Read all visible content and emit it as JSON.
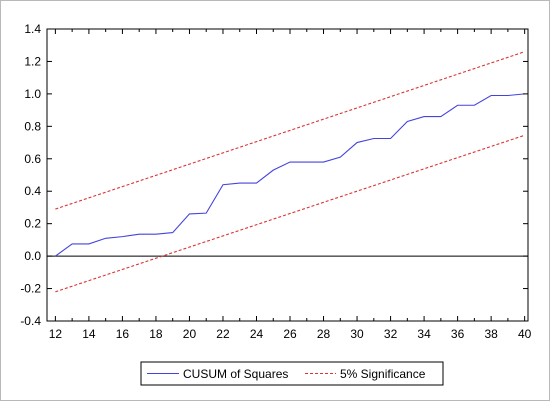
{
  "chart_data": {
    "type": "line",
    "title": "",
    "xlabel": "",
    "ylabel": "",
    "xlim": [
      11.5,
      40.2
    ],
    "ylim": [
      -0.4,
      1.4
    ],
    "x_ticks": [
      12,
      14,
      16,
      18,
      20,
      22,
      24,
      26,
      28,
      30,
      32,
      34,
      36,
      38,
      40
    ],
    "y_ticks": [
      -0.4,
      -0.2,
      0.0,
      0.2,
      0.4,
      0.6,
      0.8,
      1.0,
      1.2,
      1.4
    ],
    "y_tick_labels": [
      "-0.4",
      "-0.2",
      "0.0",
      "0.2",
      "0.4",
      "0.6",
      "0.8",
      "1.0",
      "1.2",
      "1.4"
    ],
    "grid": false,
    "zero_line": true,
    "legend_position": "bottom",
    "series": [
      {
        "name": "CUSUM of Squares",
        "style": "solid",
        "color": "#4444dd",
        "x": [
          12,
          13,
          14,
          15,
          16,
          17,
          18,
          19,
          20,
          21,
          22,
          23,
          24,
          25,
          26,
          27,
          28,
          29,
          30,
          31,
          32,
          33,
          34,
          35,
          36,
          37,
          38,
          39,
          40
        ],
        "y": [
          0.0,
          0.075,
          0.075,
          0.11,
          0.12,
          0.135,
          0.135,
          0.145,
          0.26,
          0.265,
          0.44,
          0.45,
          0.45,
          0.53,
          0.58,
          0.58,
          0.58,
          0.61,
          0.7,
          0.725,
          0.725,
          0.83,
          0.86,
          0.86,
          0.93,
          0.93,
          0.99,
          0.99,
          1.0
        ]
      },
      {
        "name": "5% Significance",
        "style": "dashed",
        "color": "#dd3333",
        "x": [
          12,
          40
        ],
        "y": [
          0.29,
          1.26
        ]
      },
      {
        "name": "",
        "style": "dashed",
        "color": "#dd3333",
        "x": [
          12,
          40
        ],
        "y": [
          -0.22,
          0.745
        ]
      }
    ]
  }
}
